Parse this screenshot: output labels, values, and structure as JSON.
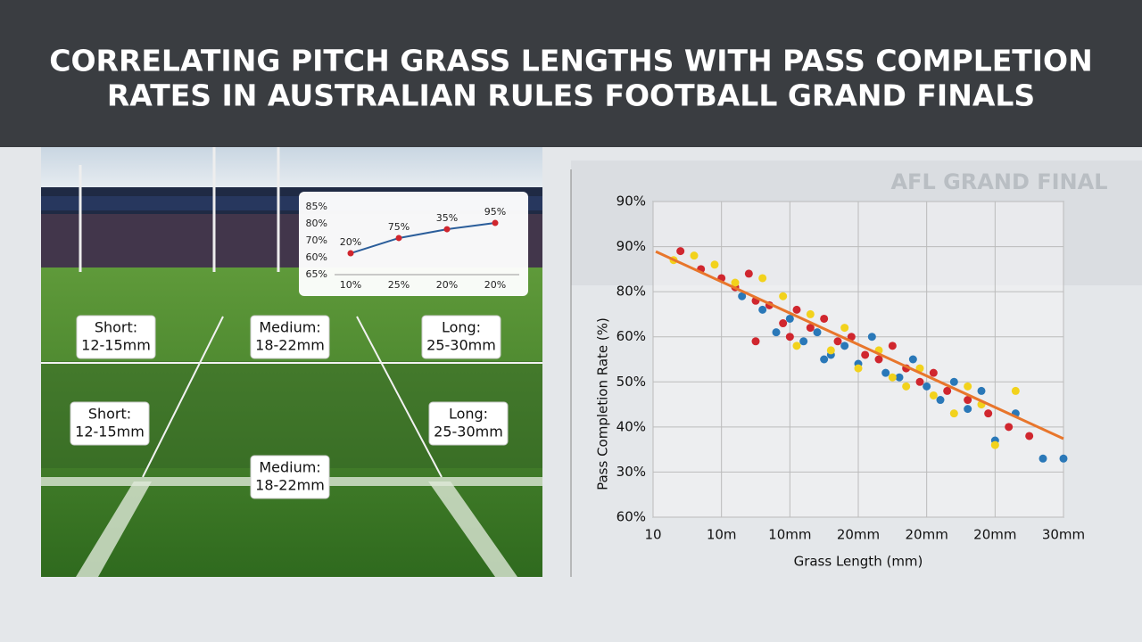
{
  "header": {
    "title": [
      "CORRELATING PITCH GRASS LENGTHS WITH PASS COMPLETION",
      "RATES IN AUSTRALIAN RULES FOOTBALL GRAND FINALS"
    ]
  },
  "stadium_banner": "AFL GRAND FINAL",
  "pitch_labels": [
    {
      "title": "Short:",
      "range": "12-15mm"
    },
    {
      "title": "Medium:",
      "range": "18-22mm"
    },
    {
      "title": "Long:",
      "range": "25-30mm"
    },
    {
      "title": "Short:",
      "range": "12-15mm"
    },
    {
      "title": "Long:",
      "range": "25-30mm"
    },
    {
      "title": "Medium:",
      "range": "18-22mm"
    }
  ],
  "chart_data": [
    {
      "type": "line",
      "color": "#2a5d9a",
      "marker_color": "#d0262e",
      "x": [
        0,
        1,
        2,
        3
      ],
      "xticks": [
        {
          "value": 0,
          "label": "10%"
        },
        {
          "value": 1,
          "label": "25%"
        },
        {
          "value": 2,
          "label": "20%"
        },
        {
          "value": 3,
          "label": "20%"
        }
      ],
      "xlim": [
        0,
        3
      ],
      "values": [
        1.26,
        2.16,
        2.68,
        3.05
      ],
      "value_labels": [
        "20%",
        "75%",
        "35%",
        "95%"
      ],
      "ylim": [
        0,
        4
      ],
      "yticks": [
        {
          "value": 4,
          "label": "85%"
        },
        {
          "value": 3,
          "label": "80%"
        },
        {
          "value": 2,
          "label": "70%"
        },
        {
          "value": 1,
          "label": "60%"
        },
        {
          "value": 0,
          "label": "65%"
        }
      ]
    },
    {
      "type": "scatter",
      "x_label": "Grass Length (mm)",
      "y_label": "Pass Completion Rate (%)",
      "grid": true,
      "xlim": [
        0,
        6
      ],
      "xticks": [
        {
          "value": 0,
          "label": "10"
        },
        {
          "value": 1,
          "label": "10m"
        },
        {
          "value": 2,
          "label": "10mm"
        },
        {
          "value": 3,
          "label": "20mm"
        },
        {
          "value": 4,
          "label": "20mm"
        },
        {
          "value": 5,
          "label": "20mm"
        },
        {
          "value": 6,
          "label": "30mm"
        }
      ],
      "ylim": [
        0,
        7
      ],
      "yticks": [
        {
          "value": 7,
          "label": "90%"
        },
        {
          "value": 6,
          "label": "90%"
        },
        {
          "value": 5,
          "label": "80%"
        },
        {
          "value": 4,
          "label": "60%"
        },
        {
          "value": 3,
          "label": "50%"
        },
        {
          "value": 2,
          "label": "40%"
        },
        {
          "value": 1,
          "label": "30%"
        },
        {
          "value": 0,
          "label": "60%"
        }
      ],
      "series": [
        {
          "color": "#d0262e",
          "x": [
            0.4,
            0.7,
            1.0,
            1.2,
            1.4,
            1.5,
            1.7,
            1.9,
            2.1,
            2.3,
            2.5,
            2.7,
            2.9,
            3.1,
            3.3,
            3.5,
            3.7,
            3.9,
            4.1,
            4.3,
            4.6,
            4.9,
            5.2,
            5.5,
            1.5,
            2.0
          ],
          "values": [
            5.9,
            5.5,
            5.3,
            5.1,
            5.4,
            4.8,
            4.7,
            4.3,
            4.6,
            4.2,
            4.4,
            3.9,
            4.0,
            3.6,
            3.5,
            3.8,
            3.3,
            3.0,
            3.2,
            2.8,
            2.6,
            2.3,
            2.0,
            1.8,
            3.9,
            4.0
          ]
        },
        {
          "color": "#2a78b8",
          "x": [
            1.3,
            1.6,
            1.8,
            2.0,
            2.2,
            2.4,
            2.6,
            2.8,
            3.0,
            3.2,
            3.4,
            3.6,
            3.8,
            4.0,
            4.2,
            4.4,
            4.6,
            4.8,
            5.0,
            5.3,
            5.7,
            6.0,
            2.5
          ],
          "values": [
            4.9,
            4.6,
            4.1,
            4.4,
            3.9,
            4.1,
            3.6,
            3.8,
            3.4,
            4.0,
            3.2,
            3.1,
            3.5,
            2.9,
            2.6,
            3.0,
            2.4,
            2.8,
            1.7,
            2.3,
            1.3,
            1.3,
            3.5
          ]
        },
        {
          "color": "#f2d21c",
          "x": [
            0.3,
            0.6,
            0.9,
            1.2,
            1.6,
            1.9,
            2.1,
            2.3,
            2.6,
            2.8,
            3.0,
            3.3,
            3.5,
            3.7,
            3.9,
            4.1,
            4.4,
            4.6,
            4.8,
            5.0,
            5.3
          ],
          "values": [
            5.7,
            5.8,
            5.6,
            5.2,
            5.3,
            4.9,
            3.8,
            4.5,
            3.7,
            4.2,
            3.3,
            3.7,
            3.1,
            2.9,
            3.3,
            2.7,
            2.3,
            2.9,
            2.5,
            1.6,
            2.8
          ]
        }
      ],
      "trend_line": {
        "color": "#e8762c",
        "x": [
          0.04,
          6
        ],
        "values": [
          5.89,
          1.74
        ]
      }
    }
  ]
}
